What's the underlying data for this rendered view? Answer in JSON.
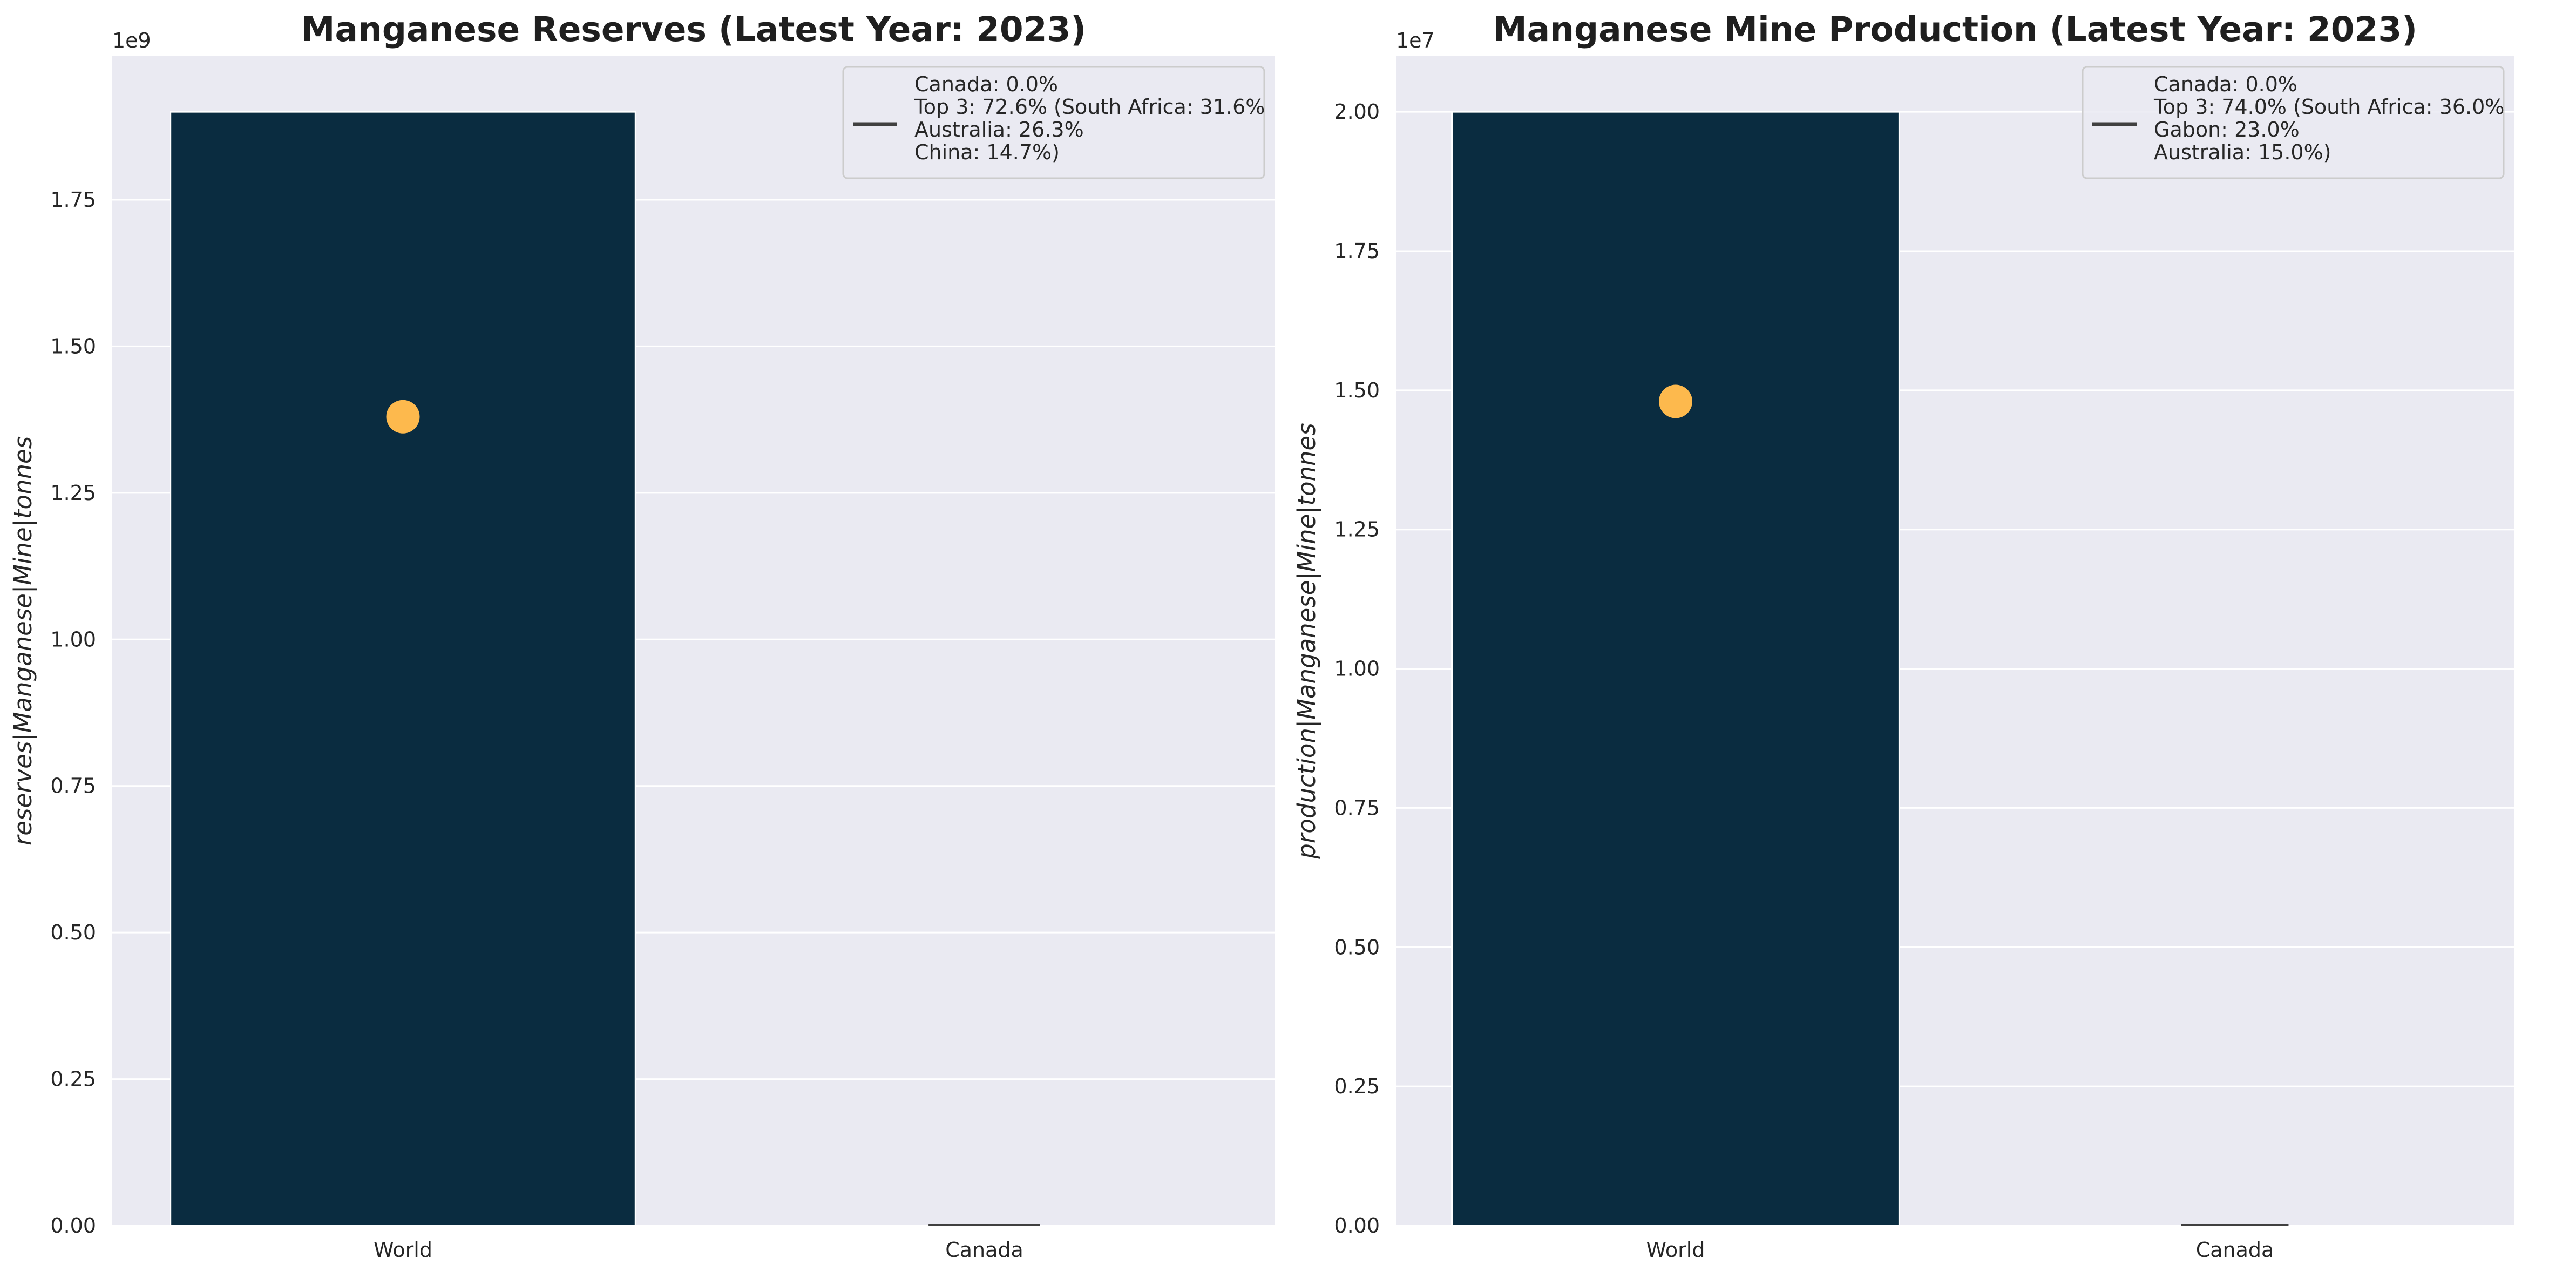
{
  "chart_data": [
    {
      "type": "bar",
      "title": "Manganese Reserves (Latest Year: 2023)",
      "xlabel": "",
      "ylabel": "reserves|Manganese|Mine|tonnes",
      "y_multiplier_label": "1e9",
      "y_multiplier": 1000000000,
      "categories": [
        "World",
        "Canada"
      ],
      "values": [
        1900000000,
        0
      ],
      "marker": {
        "category": "World",
        "value": 1380000000,
        "color": "#fdb94d"
      },
      "ylim": [
        0,
        1995000000
      ],
      "yticks": [
        0,
        0.25,
        0.5,
        0.75,
        1.0,
        1.25,
        1.5,
        1.75
      ],
      "ytick_labels": [
        "0.00",
        "0.25",
        "0.50",
        "0.75",
        "1.00",
        "1.25",
        "1.50",
        "1.75"
      ],
      "legend_lines": [
        "Canada: 0.0%",
        "Top 3: 72.6% (South Africa: 31.6%",
        "Australia: 26.3%",
        "China: 14.7%)"
      ],
      "legend_position": "top-right",
      "grid": true
    },
    {
      "type": "bar",
      "title": "Manganese Mine Production (Latest Year: 2023)",
      "xlabel": "",
      "ylabel": "production|Manganese|Mine|tonnes",
      "y_multiplier_label": "1e7",
      "y_multiplier": 10000000,
      "categories": [
        "World",
        "Canada"
      ],
      "values": [
        20000000,
        0
      ],
      "marker": {
        "category": "World",
        "value": 14800000,
        "color": "#fdb94d"
      },
      "ylim": [
        0,
        21000000
      ],
      "yticks": [
        0,
        0.25,
        0.5,
        0.75,
        1.0,
        1.25,
        1.5,
        1.75,
        2.0
      ],
      "ytick_labels": [
        "0.00",
        "0.25",
        "0.50",
        "0.75",
        "1.00",
        "1.25",
        "1.50",
        "1.75",
        "2.00"
      ],
      "legend_lines": [
        "Canada: 0.0%",
        "Top 3: 74.0% (South Africa: 36.0%",
        "Gabon: 23.0%",
        "Australia: 15.0%)"
      ],
      "legend_position": "top-right",
      "grid": true
    }
  ],
  "colors": {
    "bar": "#0a2c40",
    "plot_background": "#eaeaf2",
    "grid": "#ffffff",
    "marker": "#fdb94d",
    "legend_line": "#404040"
  }
}
